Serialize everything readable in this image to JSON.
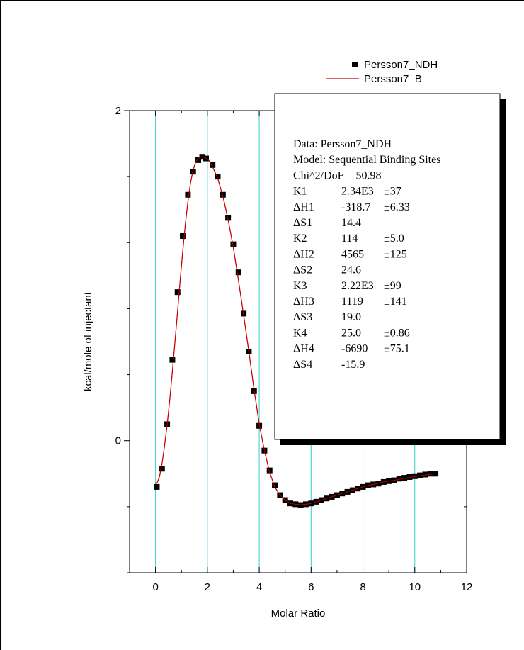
{
  "chart_data": {
    "type": "scatter",
    "xlabel": "Molar Ratio",
    "ylabel": "kcal/mole of injectant",
    "xlim": [
      -1,
      12
    ],
    "ylim": [
      -0.8,
      2
    ],
    "x_ticks": [
      0,
      2,
      4,
      6,
      8,
      10,
      12
    ],
    "y_tick_labels": [
      {
        "value": 0,
        "label": "0"
      },
      {
        "value": 2,
        "label": "2"
      }
    ],
    "y_minor_ticks": [
      -0.8,
      -0.4,
      0.4,
      0.8,
      1.2,
      1.6
    ],
    "vertical_grid": [
      0,
      2,
      4,
      6,
      8,
      10
    ],
    "grid_color": "#33cccc",
    "legend_position": "top-right",
    "series": [
      {
        "name": "Persson7_NDH",
        "kind": "points",
        "color": "#000000",
        "x": [
          0.05,
          0.25,
          0.45,
          0.65,
          0.85,
          1.05,
          1.25,
          1.45,
          1.65,
          1.8,
          1.95,
          2.2,
          2.4,
          2.6,
          2.8,
          3.0,
          3.2,
          3.4,
          3.6,
          3.8,
          4.0,
          4.2,
          4.4,
          4.6,
          4.8,
          5.0,
          5.2,
          5.4,
          5.6,
          5.8,
          6.0,
          6.2,
          6.4,
          6.6,
          6.8,
          7.0,
          7.2,
          7.4,
          7.6,
          7.8,
          8.0,
          8.2,
          8.4,
          8.6,
          8.8,
          9.0,
          9.2,
          9.4,
          9.6,
          9.8,
          10.0,
          10.2,
          10.4,
          10.6,
          10.8
        ],
        "y": [
          -0.28,
          -0.17,
          0.1,
          0.49,
          0.9,
          1.24,
          1.49,
          1.63,
          1.7,
          1.72,
          1.71,
          1.67,
          1.6,
          1.49,
          1.35,
          1.19,
          1.02,
          0.77,
          0.54,
          0.3,
          0.09,
          -0.06,
          -0.18,
          -0.27,
          -0.33,
          -0.36,
          -0.38,
          -0.385,
          -0.39,
          -0.385,
          -0.38,
          -0.37,
          -0.36,
          -0.35,
          -0.34,
          -0.33,
          -0.32,
          -0.31,
          -0.3,
          -0.29,
          -0.28,
          -0.27,
          -0.265,
          -0.26,
          -0.25,
          -0.245,
          -0.24,
          -0.23,
          -0.225,
          -0.22,
          -0.215,
          -0.21,
          -0.205,
          -0.2,
          -0.2
        ]
      },
      {
        "name": "Persson7_B",
        "kind": "line",
        "color": "#cc0000",
        "x": [
          0.05,
          0.15,
          0.25,
          0.35,
          0.45,
          0.55,
          0.65,
          0.75,
          0.85,
          0.95,
          1.05,
          1.15,
          1.25,
          1.35,
          1.45,
          1.55,
          1.65,
          1.75,
          1.85,
          1.95,
          2.05,
          2.2,
          2.4,
          2.6,
          2.8,
          3.0,
          3.2,
          3.4,
          3.6,
          3.8,
          4.0,
          4.2,
          4.4,
          4.6,
          4.8,
          5.0,
          5.2,
          5.4,
          5.6,
          5.8,
          6.0,
          6.4,
          6.8,
          7.2,
          7.6,
          8.0,
          8.4,
          8.8,
          9.2,
          9.6,
          10.0,
          10.4,
          10.8
        ],
        "y": [
          -0.26,
          -0.22,
          -0.14,
          -0.03,
          0.1,
          0.25,
          0.42,
          0.6,
          0.78,
          0.97,
          1.15,
          1.31,
          1.45,
          1.56,
          1.64,
          1.69,
          1.71,
          1.72,
          1.72,
          1.71,
          1.7,
          1.66,
          1.59,
          1.48,
          1.34,
          1.17,
          0.97,
          0.76,
          0.54,
          0.31,
          0.1,
          -0.06,
          -0.19,
          -0.28,
          -0.33,
          -0.36,
          -0.38,
          -0.385,
          -0.388,
          -0.385,
          -0.38,
          -0.36,
          -0.34,
          -0.32,
          -0.3,
          -0.28,
          -0.265,
          -0.25,
          -0.24,
          -0.228,
          -0.218,
          -0.208,
          -0.2
        ]
      }
    ],
    "results_box": [
      "Data: Persson7_NDH",
      "Model: Sequential Binding Sites",
      "Chi^2/DoF = 50.98",
      [
        "K1",
        "2.34E3",
        "±37"
      ],
      [
        "ΔH1",
        "-318.7",
        "±6.33"
      ],
      [
        "ΔS1",
        "14.4",
        ""
      ],
      [
        "K2",
        "114",
        "±5.0"
      ],
      [
        "ΔH2",
        "4565",
        "±125"
      ],
      [
        "ΔS2",
        "24.6",
        ""
      ],
      [
        "K3",
        "2.22E3",
        "±99"
      ],
      [
        "ΔH3",
        "1119",
        "±141"
      ],
      [
        "ΔS3",
        "19.0",
        ""
      ],
      [
        "K4",
        "25.0",
        "±0.86"
      ],
      [
        "ΔH4",
        "-6690",
        "±75.1"
      ],
      [
        "ΔS4",
        "-15.9",
        ""
      ]
    ]
  }
}
